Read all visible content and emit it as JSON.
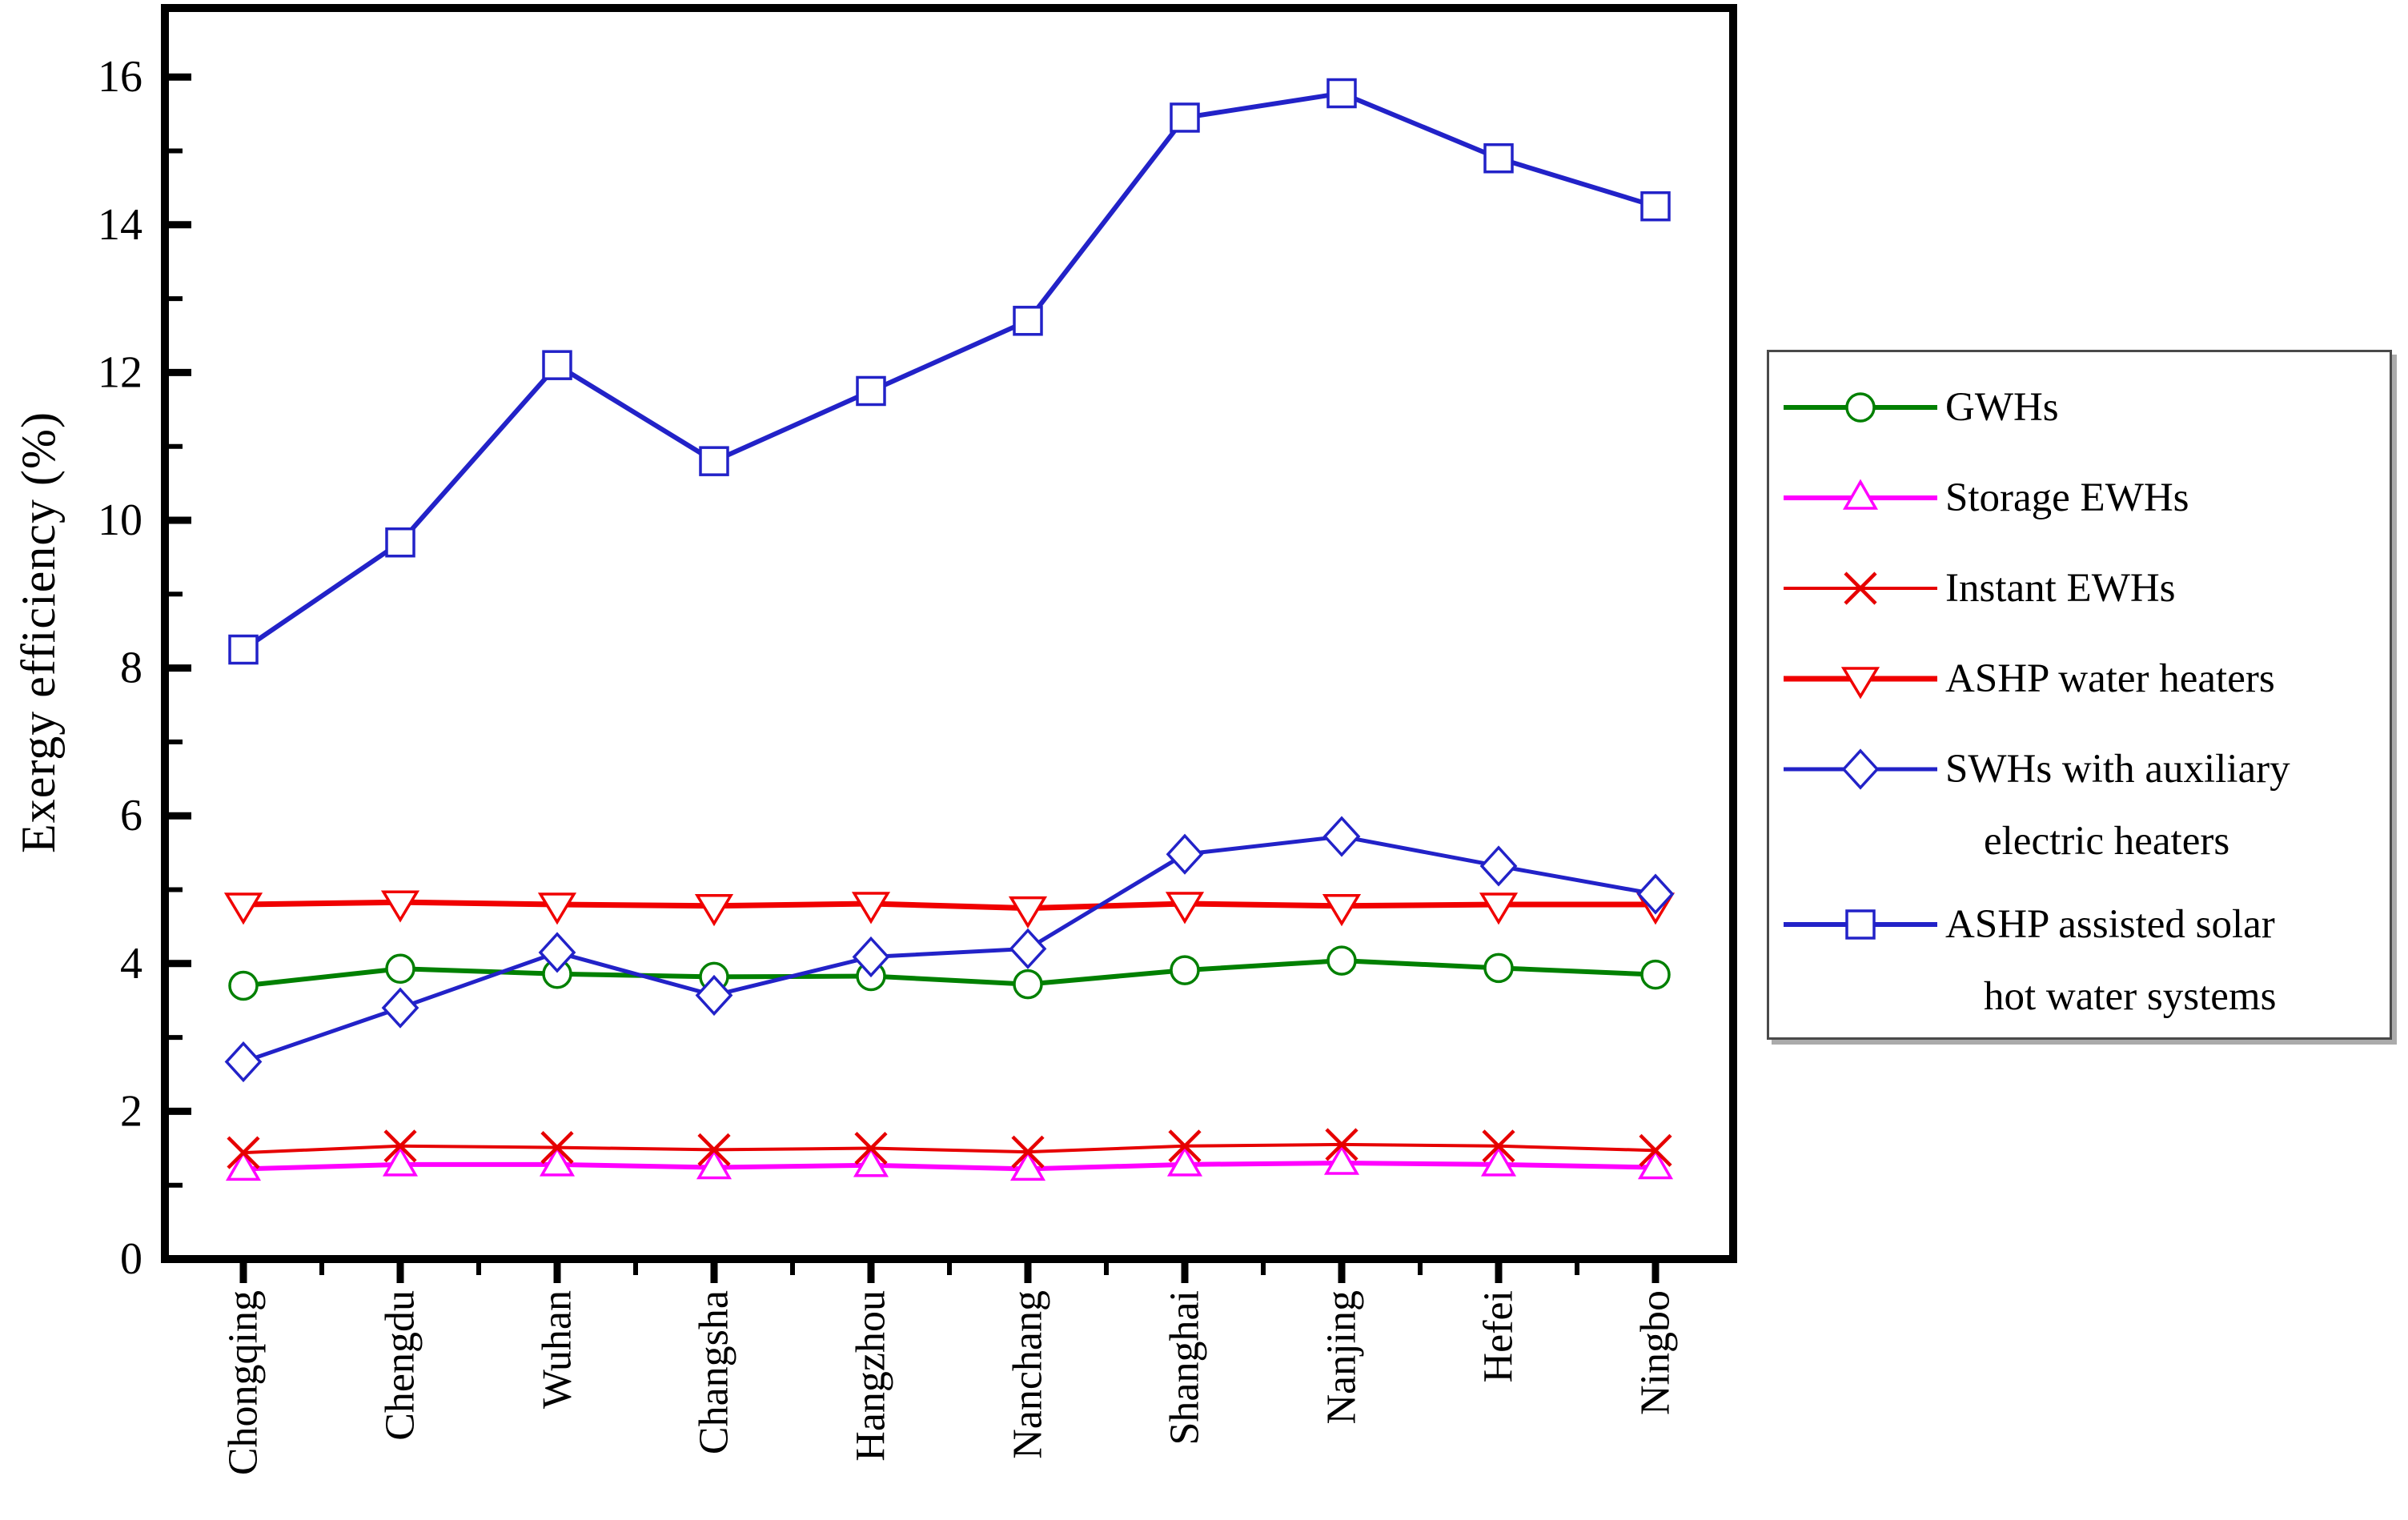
{
  "figure": {
    "background": "#ffffff",
    "axis_color": "#000000",
    "shadow_color": "#ababab"
  },
  "chart_data": {
    "type": "line",
    "title": "",
    "xlabel": "",
    "ylabel": "Exergy efficiency (%)",
    "ylim": [
      0,
      16.9
    ],
    "yticks_major": [
      0,
      2,
      4,
      6,
      8,
      10,
      12,
      14,
      16
    ],
    "yticks_minor": [
      1,
      3,
      5,
      7,
      9,
      11,
      13,
      15
    ],
    "grid": false,
    "legend_position": "right-outside",
    "categories": [
      "Chongqing",
      "Chengdu",
      "Wuhan",
      "Changsha",
      "Hangzhou",
      "Nanchang",
      "Shanghai",
      "Nanjing",
      "Hefei",
      "Ningbo"
    ],
    "series": [
      {
        "name": "GWHs",
        "marker": "circle",
        "color": "#008000",
        "line_width": 6,
        "values": [
          3.7,
          3.93,
          3.86,
          3.82,
          3.83,
          3.72,
          3.91,
          4.04,
          3.94,
          3.85
        ]
      },
      {
        "name": "Storage EWHs",
        "marker": "triangle-up",
        "color": "#ff00ff",
        "line_width": 6,
        "values": [
          1.22,
          1.28,
          1.28,
          1.24,
          1.27,
          1.22,
          1.28,
          1.3,
          1.28,
          1.24
        ]
      },
      {
        "name": "Instant EWHs",
        "marker": "x",
        "color": "#e60000",
        "line_width": 4,
        "values": [
          1.44,
          1.53,
          1.51,
          1.48,
          1.5,
          1.45,
          1.53,
          1.55,
          1.53,
          1.47
        ]
      },
      {
        "name": "ASHP water heaters",
        "marker": "triangle-down",
        "color": "#f00000",
        "line_width": 7,
        "values": [
          4.8,
          4.83,
          4.8,
          4.78,
          4.81,
          4.75,
          4.81,
          4.78,
          4.8,
          4.8
        ]
      },
      {
        "name": "SWHs with auxiliary electric heaters",
        "marker": "diamond",
        "color": "#2222c8",
        "line_width": 5,
        "values": [
          2.67,
          3.4,
          4.15,
          3.57,
          4.09,
          4.2,
          5.48,
          5.72,
          5.32,
          4.94
        ]
      },
      {
        "name": "ASHP assisted solar hot water systems",
        "marker": "square",
        "color": "#2222c8",
        "line_width": 6,
        "values": [
          8.25,
          9.7,
          12.1,
          10.8,
          11.75,
          12.7,
          15.45,
          15.78,
          14.9,
          14.25
        ]
      }
    ],
    "legend": {
      "entries": [
        {
          "series": 0,
          "lines": [
            "GWHs"
          ]
        },
        {
          "series": 1,
          "lines": [
            "Storage EWHs"
          ]
        },
        {
          "series": 2,
          "lines": [
            "Instant EWHs"
          ]
        },
        {
          "series": 3,
          "lines": [
            "ASHP water heaters"
          ]
        },
        {
          "series": 4,
          "lines": [
            "SWHs with auxiliary",
            "electric heaters"
          ]
        },
        {
          "series": 5,
          "lines": [
            "ASHP assisted solar",
            "hot water systems"
          ]
        }
      ]
    }
  }
}
